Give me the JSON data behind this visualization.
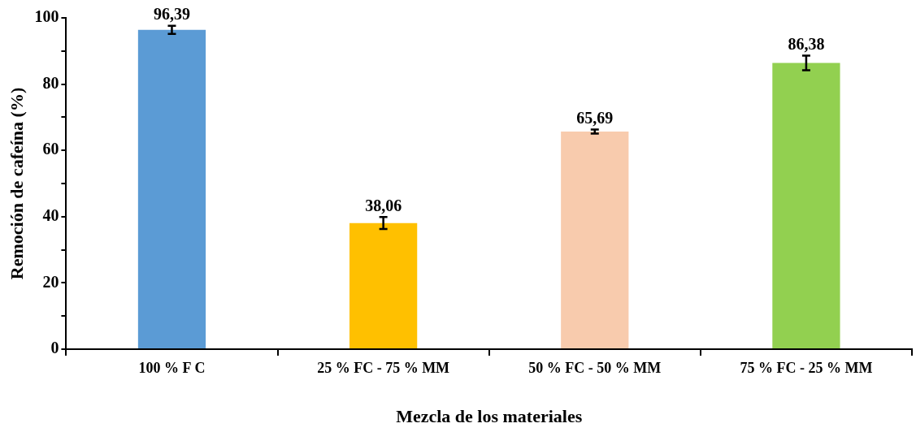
{
  "chart_data": {
    "type": "bar",
    "xlabel": "Mezcla de los materiales",
    "ylabel": "Remoción de cafeína (%)",
    "categories": [
      "100 % F C",
      "25 % FC - 75 % MM",
      "50 % FC - 50 % MM",
      "75 % FC - 25 % MM"
    ],
    "values": [
      96.39,
      38.06,
      65.69,
      86.38
    ],
    "colors": [
      "#5b9bd5",
      "#ffc000",
      "#f8cbad",
      "#92d050"
    ],
    "errors": [
      1.2,
      1.8,
      0.6,
      2.2
    ],
    "value_labels": [
      "96,39",
      "38,06",
      "65,69",
      "86,38"
    ],
    "ylim": [
      0,
      100
    ],
    "yticks": [
      0,
      {
        "value": 10,
        "label": null
      },
      20,
      {
        "value": 30,
        "label": null
      },
      40,
      {
        "value": 50,
        "label": null
      },
      60,
      {
        "value": 70,
        "label": null
      },
      80,
      {
        "value": 90,
        "label": null
      },
      100
    ],
    "grid": false,
    "legend": false
  }
}
